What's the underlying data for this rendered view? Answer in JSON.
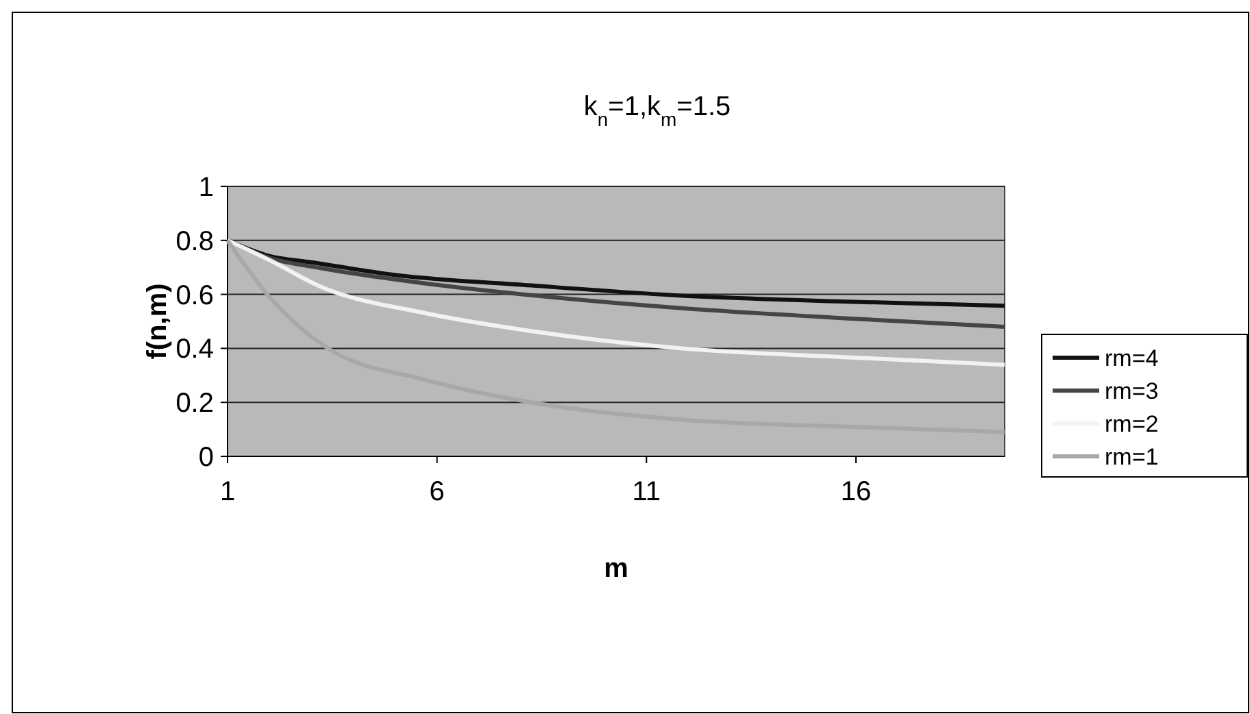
{
  "chart_data": {
    "type": "line",
    "title": "k$_{n}$=1,k$_{m}$=1.5",
    "xlabel": "m",
    "ylabel": "f(n,m)",
    "xlim": [
      1,
      19.55
    ],
    "xticks": [
      1,
      6,
      11,
      16
    ],
    "ylim": [
      0,
      1
    ],
    "yticks": [
      0,
      0.2,
      0.4,
      0.6,
      0.8,
      1
    ],
    "grid": "y",
    "legend": "right",
    "marker": "none",
    "line_style": "solid",
    "series": [
      {
        "name": "rm=4",
        "color": "#111111",
        "x": [
          1,
          2,
          3,
          5,
          8.25,
          12,
          15.8,
          19.55
        ],
        "values": [
          0.8,
          0.742,
          0.719,
          0.672,
          0.633,
          0.594,
          0.573,
          0.558
        ]
      },
      {
        "name": "rm=3",
        "color": "#454545",
        "x": [
          1,
          2,
          3.2,
          5.7,
          8.25,
          12,
          15.8,
          19.55
        ],
        "values": [
          0.8,
          0.735,
          0.698,
          0.641,
          0.597,
          0.547,
          0.511,
          0.48
        ]
      },
      {
        "name": "rm=2",
        "color": "#f2f2f2",
        "x": [
          1,
          2,
          3.2,
          5.7,
          8.25,
          12,
          15.8,
          19.55
        ],
        "values": [
          0.8,
          0.727,
          0.63,
          0.531,
          0.464,
          0.398,
          0.367,
          0.339
        ]
      },
      {
        "name": "rm=1",
        "color": "#a8a8a8",
        "x": [
          1,
          1.95,
          3.4,
          5.7,
          8.25,
          12,
          15.8,
          19.55
        ],
        "values": [
          0.8,
          0.6,
          0.4,
          0.284,
          0.2,
          0.134,
          0.11,
          0.09
        ]
      }
    ]
  }
}
